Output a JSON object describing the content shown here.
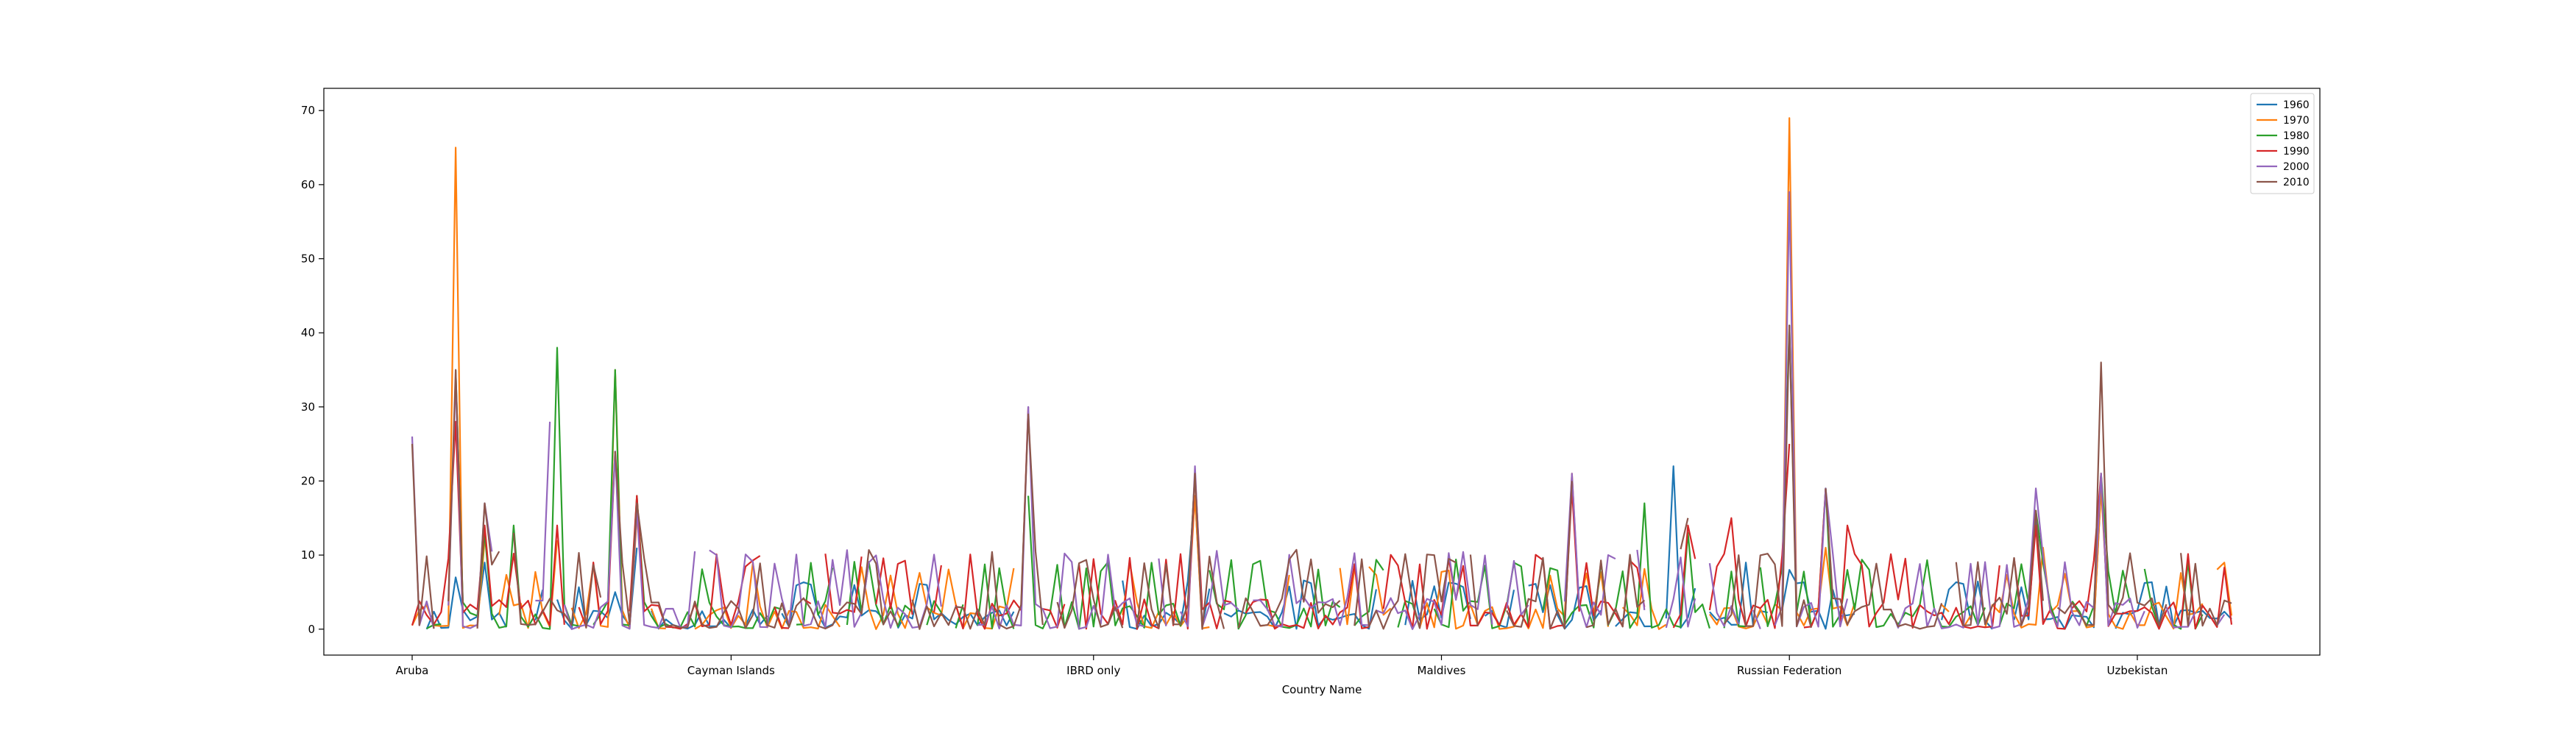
{
  "chart_data": {
    "type": "line",
    "title": "",
    "xlabel": "Country Name",
    "ylabel": "",
    "ylim": [
      -3.5,
      73
    ],
    "yticks": [
      0,
      10,
      20,
      30,
      40,
      50,
      60,
      70
    ],
    "x_tick_labels": [
      {
        "index": 0,
        "label": "Aruba"
      },
      {
        "index": 44,
        "label": "Cayman Islands"
      },
      {
        "index": 94,
        "label": "IBRD only"
      },
      {
        "index": 142,
        "label": "Maldives"
      },
      {
        "index": 190,
        "label": "Russian Federation"
      },
      {
        "index": 238,
        "label": "Uzbekistan"
      }
    ],
    "x_count": 252,
    "grid": false,
    "legend_position": "top-right",
    "gaps": [
      [
        84,
        96
      ],
      [
        200,
        210
      ]
    ],
    "series": [
      {
        "name": "1960",
        "color": "#1f77b4",
        "seed": 11,
        "scale": 0.55,
        "peaks": {
          "2": 0,
          "6": 7,
          "10": 9,
          "20": 4,
          "28": 5,
          "31": 11,
          "85": 16,
          "108": 18,
          "174": 22,
          "184": 9,
          "190": 8,
          "224": 15,
          "233": 19
        }
      },
      {
        "name": "1970",
        "color": "#ff7f0e",
        "seed": 23,
        "scale": 0.75,
        "peaks": {
          "6": 65,
          "10": 12,
          "20": 12,
          "28": 35,
          "31": 15,
          "85": 33,
          "88": 15,
          "108": 18,
          "160": 21,
          "190": 69,
          "195": 11,
          "233": 19,
          "225": 11
        }
      },
      {
        "name": "1980",
        "color": "#2ca02c",
        "seed": 37,
        "scale": 0.8,
        "peaks": {
          "6": 35,
          "10": 13,
          "14": 14,
          "20": 38,
          "28": 35,
          "31": 18,
          "85": 18,
          "108": 21,
          "170": 17,
          "176": 13,
          "190": 41,
          "195": 19,
          "233": 21,
          "224": 16
        }
      },
      {
        "name": "1990",
        "color": "#d62728",
        "seed": 51,
        "scale": 0.85,
        "peaks": {
          "6": 28,
          "10": 14,
          "20": 14,
          "28": 24,
          "31": 18,
          "85": 30,
          "108": 21,
          "160": 19,
          "176": 14,
          "182": 15,
          "190": 25,
          "195": 19,
          "198": 14,
          "233": 21,
          "224": 14
        }
      },
      {
        "name": "2000",
        "color": "#9467bd",
        "seed": 67,
        "scale": 0.9,
        "peaks": {
          "0": 26,
          "6": 34,
          "10": 17,
          "19": 28,
          "28": 24,
          "31": 16,
          "85": 30,
          "108": 22,
          "160": 21,
          "190": 59,
          "195": 19,
          "233": 21,
          "224": 19
        }
      },
      {
        "name": "2010",
        "color": "#8c564b",
        "seed": 79,
        "scale": 0.9,
        "peaks": {
          "0": 25,
          "6": 35,
          "10": 17,
          "14": 13,
          "28": 24,
          "31": 17,
          "85": 29,
          "108": 21,
          "160": 20,
          "176": 15,
          "190": 41,
          "195": 19,
          "233": 36,
          "224": 16
        }
      }
    ]
  }
}
